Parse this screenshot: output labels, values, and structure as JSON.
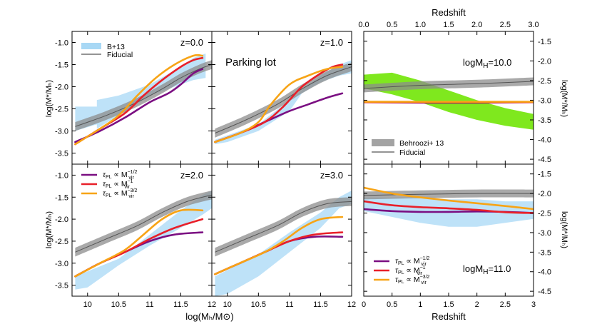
{
  "labels": {
    "xlabel_left": "log(Mₕ/M⊙)",
    "ylabel_left": "log(M*/Mₕ)",
    "ylabel_right": "log(M*/Mₕ)",
    "xlabel_right": "Redshift",
    "xlabel_right_top": "Redshift",
    "parking_lot": "Parking lot",
    "tau_prefix": "τ",
    "tau_sub": "PL",
    "tau_rel": "∝ M",
    "tau_vir": "vir"
  },
  "colors": {
    "purple": "#7b0f82",
    "red": "#e8202a",
    "orange": "#f7a416",
    "gray_band": "#8c8c8c",
    "gray_line": "#555555",
    "blue_band": "#a8d8f5",
    "green_band": "#7fe81e"
  },
  "chart_data": [
    {
      "type": "area",
      "panel": "z=0.0",
      "annotation": "z=0.0",
      "xlim": [
        9.75,
        12.0
      ],
      "ylim": [
        -3.75,
        -0.75
      ],
      "xticks": [
        10,
        10.5,
        11,
        11.5,
        12
      ],
      "yticks": [
        -1.0,
        -1.5,
        -2.0,
        -2.5,
        -3.0,
        -3.5
      ],
      "legend": [
        {
          "label": "B+13",
          "kind": "band"
        },
        {
          "label": "Fiducial",
          "kind": "line"
        }
      ],
      "b13_band": {
        "x": [
          9.8,
          10.15,
          10.15,
          10.5,
          11.0,
          11.5,
          11.7,
          11.9,
          11.9,
          11.7,
          11.5,
          11.0,
          10.5,
          10.15,
          10.15,
          9.8
        ],
        "y": [
          -2.45,
          -2.45,
          -2.3,
          -2.2,
          -1.95,
          -1.55,
          -1.35,
          -1.25,
          -1.8,
          -1.85,
          -1.95,
          -2.2,
          -2.65,
          -2.95,
          -2.85,
          -3.0
        ]
      },
      "fiducial": {
        "x": [
          9.8,
          10.3,
          10.8,
          11.2,
          11.5,
          11.8,
          12.0
        ],
        "y": [
          -2.9,
          -2.65,
          -2.35,
          -2.05,
          -1.8,
          -1.6,
          -1.5
        ]
      },
      "series": [
        {
          "name": "tau_PL ~ M_vir^-1/2",
          "color": "purple",
          "x": [
            9.8,
            10.2,
            10.6,
            11.0,
            11.3,
            11.5,
            11.7,
            11.85
          ],
          "y": [
            -3.25,
            -3.0,
            -2.7,
            -2.35,
            -2.15,
            -1.95,
            -1.7,
            -1.6
          ]
        },
        {
          "name": "tau_PL ~ M_vir^-1",
          "color": "red",
          "x": [
            9.8,
            10.2,
            10.6,
            10.9,
            11.2,
            11.5,
            11.7,
            11.85
          ],
          "y": [
            -3.3,
            -2.95,
            -2.6,
            -2.2,
            -1.85,
            -1.55,
            -1.4,
            -1.35
          ]
        },
        {
          "name": "tau_PL ~ M_vir^-3/2",
          "color": "orange",
          "x": [
            9.8,
            10.2,
            10.5,
            10.8,
            11.1,
            11.4,
            11.7,
            11.85
          ],
          "y": [
            -3.3,
            -2.95,
            -2.65,
            -2.2,
            -1.8,
            -1.5,
            -1.3,
            -1.3
          ]
        }
      ]
    },
    {
      "type": "area",
      "panel": "z=1.0",
      "annotation": "z=1.0",
      "xlim": [
        9.75,
        12.0
      ],
      "ylim": [
        -3.75,
        -0.75
      ],
      "b13_band": {
        "x": [
          9.8,
          10.5,
          11.0,
          11.5,
          11.8,
          12.0,
          12.0,
          11.8,
          11.5,
          11.2,
          11.0,
          10.5,
          10.0,
          9.8
        ],
        "y": [
          -3.2,
          -2.85,
          -2.3,
          -1.75,
          -1.5,
          -1.4,
          -1.7,
          -1.75,
          -1.9,
          -2.15,
          -2.55,
          -3.0,
          -3.25,
          -3.3
        ]
      },
      "fiducial": {
        "x": [
          9.8,
          10.3,
          10.8,
          11.2,
          11.6,
          12.0
        ],
        "y": [
          -3.05,
          -2.75,
          -2.4,
          -2.05,
          -1.75,
          -1.55
        ]
      },
      "series": [
        {
          "name": "tau_PL ~ M_vir^-1/2",
          "color": "purple",
          "x": [
            9.8,
            10.2,
            10.6,
            11.0,
            11.3,
            11.6,
            11.85
          ],
          "y": [
            -3.25,
            -3.05,
            -2.8,
            -2.55,
            -2.4,
            -2.25,
            -2.15
          ]
        },
        {
          "name": "tau_PL ~ M_vir^-1",
          "color": "red",
          "x": [
            9.8,
            10.2,
            10.6,
            10.9,
            11.2,
            11.5,
            11.7,
            11.85
          ],
          "y": [
            -3.25,
            -3.05,
            -2.8,
            -2.45,
            -2.0,
            -1.7,
            -1.55,
            -1.5
          ]
        },
        {
          "name": "tau_PL ~ M_vir^-3/2",
          "color": "orange",
          "x": [
            9.8,
            10.2,
            10.5,
            10.7,
            11.0,
            11.3,
            11.6,
            11.85
          ],
          "y": [
            -3.25,
            -3.05,
            -2.8,
            -2.4,
            -1.95,
            -1.75,
            -1.6,
            -1.55
          ]
        }
      ]
    },
    {
      "type": "area",
      "panel": "z=2.0",
      "annotation": "z=2.0",
      "xlim": [
        9.75,
        12.0
      ],
      "ylim": [
        -3.75,
        -0.75
      ],
      "legend": [
        {
          "label_exp": "−1/2",
          "color": "purple"
        },
        {
          "label_exp": "−1",
          "color": "red"
        },
        {
          "label_exp": "−3/2",
          "color": "orange"
        }
      ],
      "b13_band": {
        "x": [
          9.8,
          10.5,
          11.0,
          11.5,
          11.85,
          12.0,
          12.0,
          11.85,
          11.5,
          11.0,
          10.5,
          10.0,
          9.8
        ],
        "y": [
          -3.3,
          -2.9,
          -2.35,
          -1.8,
          -1.45,
          -1.35,
          -1.75,
          -1.9,
          -2.2,
          -2.6,
          -3.05,
          -3.55,
          -3.6
        ]
      },
      "fiducial": {
        "x": [
          9.8,
          10.3,
          10.8,
          11.2,
          11.6,
          12.0
        ],
        "y": [
          -2.75,
          -2.45,
          -2.15,
          -1.85,
          -1.6,
          -1.45
        ]
      },
      "series": [
        {
          "name": "tau_PL ~ M_vir^-1/2",
          "color": "purple",
          "x": [
            9.8,
            10.2,
            10.6,
            11.0,
            11.4,
            11.85
          ],
          "y": [
            -3.3,
            -3.0,
            -2.75,
            -2.5,
            -2.35,
            -2.3
          ]
        },
        {
          "name": "tau_PL ~ M_vir^-1",
          "color": "red",
          "x": [
            9.8,
            10.2,
            10.6,
            11.0,
            11.4,
            11.85
          ],
          "y": [
            -3.3,
            -3.0,
            -2.75,
            -2.45,
            -2.2,
            -2.0
          ]
        },
        {
          "name": "tau_PL ~ M_vir^-3/2",
          "color": "orange",
          "x": [
            9.8,
            10.2,
            10.6,
            10.9,
            11.2,
            11.5,
            11.85
          ],
          "y": [
            -3.3,
            -3.0,
            -2.7,
            -2.35,
            -2.0,
            -1.8,
            -1.8
          ]
        }
      ]
    },
    {
      "type": "area",
      "panel": "z=3.0",
      "annotation": "z=3.0",
      "xlim": [
        9.75,
        12.0
      ],
      "ylim": [
        -3.75,
        -0.75
      ],
      "b13_band": {
        "x": [
          9.8,
          10.5,
          11.0,
          11.5,
          11.8,
          12.0,
          12.0,
          11.8,
          11.5,
          11.0,
          10.5,
          10.0,
          9.8
        ],
        "y": [
          -3.3,
          -2.8,
          -2.3,
          -1.85,
          -1.5,
          -1.35,
          -1.65,
          -1.75,
          -2.2,
          -2.75,
          -3.3,
          -3.7,
          -3.75
        ]
      },
      "fiducial": {
        "x": [
          9.8,
          10.3,
          10.8,
          11.2,
          11.6,
          12.0
        ],
        "y": [
          -2.75,
          -2.45,
          -2.15,
          -1.85,
          -1.65,
          -1.6
        ]
      },
      "series": [
        {
          "name": "tau_PL ~ M_vir^-1/2",
          "color": "purple",
          "x": [
            9.8,
            10.2,
            10.6,
            11.0,
            11.4,
            11.85
          ],
          "y": [
            -3.25,
            -3.0,
            -2.75,
            -2.5,
            -2.4,
            -2.4
          ]
        },
        {
          "name": "tau_PL ~ M_vir^-1",
          "color": "red",
          "x": [
            9.8,
            10.2,
            10.6,
            11.0,
            11.4,
            11.85
          ],
          "y": [
            -3.25,
            -3.0,
            -2.75,
            -2.5,
            -2.35,
            -2.3
          ]
        },
        {
          "name": "tau_PL ~ M_vir^-3/2",
          "color": "orange",
          "x": [
            9.8,
            10.2,
            10.6,
            10.9,
            11.2,
            11.5,
            11.85
          ],
          "y": [
            -3.25,
            -3.0,
            -2.75,
            -2.5,
            -2.2,
            -2.0,
            -1.95
          ]
        }
      ]
    },
    {
      "type": "area",
      "panel": "logMH=10.0",
      "annotation": "logM",
      "annotation_sub": "H",
      "annotation_val": "=10.0",
      "xlim": [
        0.0,
        3.0
      ],
      "ylim": [
        -4.625,
        -1.25
      ],
      "xticks": [
        0.0,
        0.5,
        1.0,
        1.5,
        2.0,
        2.5,
        3.0
      ],
      "yticks": [
        -1.5,
        -2.0,
        -2.5,
        -3.0,
        -3.5,
        -4.0,
        -4.5
      ],
      "legend": [
        {
          "label": "Behroozi+ 13",
          "kind": "band"
        },
        {
          "label": "Fiducial",
          "kind": "line"
        }
      ],
      "b13_band": {
        "x": [
          0.0,
          0.5,
          1.0,
          1.5,
          2.0,
          2.5,
          3.0,
          3.0,
          2.5,
          2.0,
          1.5,
          1.0,
          0.5,
          0.0
        ],
        "y": [
          -2.35,
          -2.3,
          -2.5,
          -2.75,
          -3.0,
          -3.2,
          -3.35,
          -3.75,
          -3.65,
          -3.5,
          -3.3,
          -3.05,
          -2.85,
          -2.7
        ]
      },
      "fiducial": {
        "x": [
          0.0,
          1.0,
          2.0,
          3.0
        ],
        "y": [
          -2.7,
          -2.62,
          -2.58,
          -2.52
        ]
      },
      "series": [
        {
          "name": "tau_PL ~ M_vir^-1/2",
          "color": "purple",
          "x": [
            0.0,
            1.0,
            2.0,
            3.0
          ],
          "y": [
            -3.05,
            -3.06,
            -3.06,
            -3.05
          ]
        },
        {
          "name": "tau_PL ~ M_vir^-1",
          "color": "red",
          "x": [
            0.0,
            1.0,
            2.0,
            3.0
          ],
          "y": [
            -3.05,
            -3.05,
            -3.05,
            -3.05
          ]
        },
        {
          "name": "tau_PL ~ M_vir^-3/2",
          "color": "orange",
          "x": [
            0.0,
            1.0,
            2.0,
            3.0
          ],
          "y": [
            -3.04,
            -3.04,
            -3.04,
            -3.04
          ]
        }
      ]
    },
    {
      "type": "area",
      "panel": "logMH=11.0",
      "annotation": "logM",
      "annotation_sub": "H",
      "annotation_val": "=11.0",
      "xlim": [
        0.0,
        3.0
      ],
      "ylim": [
        -4.625,
        -1.25
      ],
      "legend": [
        {
          "label_exp": "−1/2",
          "color": "purple"
        },
        {
          "label_exp": "−1",
          "color": "red"
        },
        {
          "label_exp": "−3/2",
          "color": "orange"
        }
      ],
      "b13_band": {
        "x": [
          0.0,
          0.5,
          1.0,
          1.5,
          2.0,
          2.5,
          3.0,
          3.0,
          2.5,
          2.0,
          1.5,
          1.0,
          0.5,
          0.0
        ],
        "y": [
          -2.1,
          -2.1,
          -2.1,
          -2.15,
          -2.15,
          -2.2,
          -2.2,
          -2.65,
          -2.75,
          -2.85,
          -2.85,
          -2.75,
          -2.6,
          -2.45
        ]
      },
      "fiducial": {
        "x": [
          0.0,
          1.0,
          2.0,
          3.0
        ],
        "y": [
          -2.05,
          -2.02,
          -2.0,
          -2.0
        ]
      },
      "series": [
        {
          "name": "tau_PL ~ M_vir^-1/2",
          "color": "purple",
          "x": [
            0.0,
            0.5,
            1.0,
            1.5,
            2.0,
            2.5,
            3.0
          ],
          "y": [
            -2.4,
            -2.45,
            -2.47,
            -2.47,
            -2.46,
            -2.47,
            -2.5
          ]
        },
        {
          "name": "tau_PL ~ M_vir^-1",
          "color": "red",
          "x": [
            0.0,
            0.5,
            1.0,
            1.5,
            2.0,
            2.5,
            3.0
          ],
          "y": [
            -2.2,
            -2.3,
            -2.35,
            -2.38,
            -2.42,
            -2.48,
            -2.5
          ]
        },
        {
          "name": "tau_PL ~ M_vir^-3/2",
          "color": "orange",
          "x": [
            0.0,
            0.5,
            1.0,
            1.5,
            2.0,
            2.5,
            3.0
          ],
          "y": [
            -1.85,
            -2.0,
            -2.1,
            -2.18,
            -2.25,
            -2.32,
            -2.4
          ]
        }
      ]
    }
  ]
}
